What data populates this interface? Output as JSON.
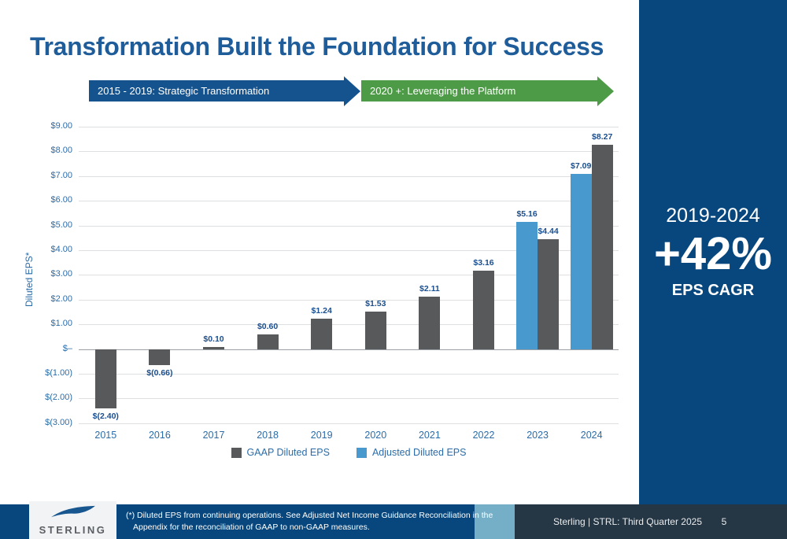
{
  "slide": {
    "title": "Transformation Built the Foundation for Success",
    "banners": [
      {
        "label": "2015 - 2019: Strategic Transformation",
        "color": "#14538E"
      },
      {
        "label": "2020 +: Leveraging the Platform",
        "color": "#4E9B47"
      }
    ],
    "highlight": {
      "period": "2019-2024",
      "value": "+42%",
      "caption": "EPS CAGR",
      "panel_color": "#07477D"
    },
    "footer": {
      "logo_text": "STERLING",
      "footnote_lines": [
        "(*) Diluted EPS from continuing operations. See Adjusted Net Income Guidance Reconciliation in the",
        "Appendix for the reconciliation of GAAP to non-GAAP measures."
      ],
      "source": "Sterling | STRL:  Third Quarter 2025",
      "page_number": "5",
      "segment_colors": {
        "blue": "#07477D",
        "light_blue": "#74AFC7",
        "slate": "#253645"
      }
    },
    "colors": {
      "title_blue": "#1E5C9A",
      "axis_blue": "#2B6CA8",
      "value_label_blue": "#1B4F8F"
    }
  },
  "chart_data": {
    "type": "bar",
    "title": "",
    "xlabel": "",
    "ylabel": "Diluted EPS*",
    "categories": [
      "2015",
      "2016",
      "2017",
      "2018",
      "2019",
      "2020",
      "2021",
      "2022",
      "2023",
      "2024"
    ],
    "series": [
      {
        "name": "GAAP Diluted EPS",
        "color": "#58595B",
        "values": [
          -2.4,
          -0.66,
          0.1,
          0.6,
          1.24,
          1.53,
          2.11,
          3.16,
          4.44,
          8.27
        ],
        "labels": [
          "$(2.40)",
          "$(0.66)",
          "$0.10",
          "$0.60",
          "$1.24",
          "$1.53",
          "$2.11",
          "$3.16",
          "$4.44",
          "$8.27"
        ]
      },
      {
        "name": "Adjusted Diluted EPS",
        "color": "#4899CE",
        "values": [
          null,
          null,
          null,
          null,
          null,
          null,
          null,
          null,
          5.16,
          7.09
        ],
        "labels": [
          null,
          null,
          null,
          null,
          null,
          null,
          null,
          null,
          "$5.16",
          "$7.09"
        ]
      }
    ],
    "adjusted_bar_position": "left-of-gaap",
    "ylim": [
      -3,
      9
    ],
    "ytick_labels": [
      "$9.00",
      "$8.00",
      "$7.00",
      "$6.00",
      "$5.00",
      "$4.00",
      "$3.00",
      "$2.00",
      "$1.00",
      "$–",
      "$(1.00)",
      "$(2.00)",
      "$(3.00)"
    ],
    "grid": true,
    "legend_position": "bottom"
  }
}
